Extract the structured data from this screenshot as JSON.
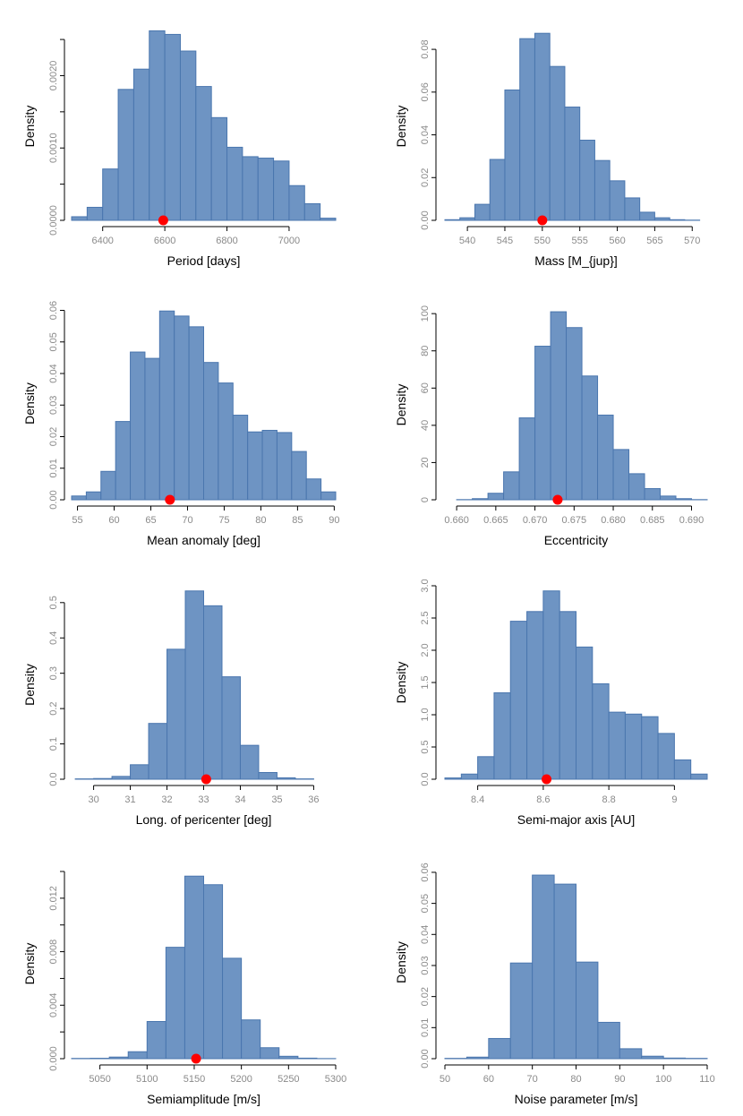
{
  "colors": {
    "bar_fill": "#6e94c3",
    "bar_edge": "#4a76ae",
    "marker": "#ff0000",
    "tick_text": "#8a8a8a"
  },
  "chart_data": [
    {
      "type": "bar",
      "xlabel": "Period [days]",
      "ylabel": "Density",
      "xlim": [
        6300,
        7150
      ],
      "ylim": [
        0,
        0.0026
      ],
      "xticks": [
        6400,
        6600,
        6800,
        7000
      ],
      "yticks": [
        0.0,
        0.001,
        0.002
      ],
      "ytick_labels": [
        "0.0000",
        "0.0010",
        "0.0020"
      ],
      "minor_yticks": [
        0.0005,
        0.0015,
        0.0025
      ],
      "bin_edges": [
        6300,
        6350,
        6400,
        6450,
        6500,
        6550,
        6600,
        6650,
        6700,
        6750,
        6800,
        6850,
        6900,
        6950,
        7000,
        7050,
        7100,
        7150
      ],
      "values": [
        5e-05,
        0.00018,
        0.00071,
        0.00181,
        0.00209,
        0.00262,
        0.00257,
        0.00234,
        0.00185,
        0.00142,
        0.00101,
        0.00088,
        0.00086,
        0.00082,
        0.00048,
        0.00023,
        3e-05
      ],
      "marker_x": 6595
    },
    {
      "type": "bar",
      "xlabel": "Mass [M_{jup}]",
      "ylabel": "Density",
      "xlim": [
        537,
        572
      ],
      "ylim": [
        0,
        0.088
      ],
      "xticks": [
        540,
        545,
        550,
        555,
        560,
        565,
        570
      ],
      "yticks": [
        0.0,
        0.02,
        0.04,
        0.06,
        0.08
      ],
      "ytick_labels": [
        "0.00",
        "0.02",
        "0.04",
        "0.06",
        "0.08"
      ],
      "bin_edges": [
        537,
        539,
        541,
        543,
        545,
        547,
        549,
        551,
        553,
        555,
        557,
        559,
        561,
        563,
        565,
        567,
        569,
        571,
        572
      ],
      "values": [
        0.0003,
        0.0012,
        0.0075,
        0.0285,
        0.061,
        0.085,
        0.0875,
        0.072,
        0.053,
        0.0375,
        0.028,
        0.0185,
        0.0105,
        0.0038,
        0.0012,
        0.0003,
        0.0001,
        0.0
      ],
      "marker_x": 550
    },
    {
      "type": "bar",
      "xlabel": "Mean anomaly [deg]",
      "ylabel": "Density",
      "xlim": [
        54.2,
        90.2
      ],
      "ylim": [
        0,
        0.061
      ],
      "xticks": [
        55,
        60,
        65,
        70,
        75,
        80,
        85,
        90
      ],
      "yticks": [
        0.0,
        0.01,
        0.02,
        0.03,
        0.04,
        0.05,
        0.06
      ],
      "ytick_labels": [
        "0.00",
        "0.01",
        "0.02",
        "0.03",
        "0.04",
        "0.05",
        "0.06"
      ],
      "bin_edges": [
        54.2,
        56.2,
        58.2,
        60.2,
        62.2,
        64.2,
        66.2,
        68.2,
        70.2,
        72.2,
        74.2,
        76.2,
        78.2,
        80.2,
        82.2,
        84.2,
        86.2,
        88.2,
        90.2
      ],
      "values": [
        0.0012,
        0.0025,
        0.009,
        0.0248,
        0.0468,
        0.0448,
        0.0598,
        0.0582,
        0.0548,
        0.0435,
        0.037,
        0.0268,
        0.0215,
        0.022,
        0.0213,
        0.0153,
        0.0066,
        0.0025
      ],
      "marker_x": 67.6
    },
    {
      "type": "bar",
      "xlabel": "Eccentricity",
      "ylabel": "Density",
      "xlim": [
        0.6585,
        0.692
      ],
      "ylim": [
        0,
        102
      ],
      "xticks": [
        0.66,
        0.665,
        0.67,
        0.675,
        0.68,
        0.685,
        0.69
      ],
      "yticks": [
        0,
        20,
        40,
        60,
        80,
        100
      ],
      "ytick_labels": [
        "0",
        "20",
        "40",
        "60",
        "80",
        "100"
      ],
      "tick_decimals": 3,
      "bin_edges": [
        0.66,
        0.662,
        0.664,
        0.666,
        0.668,
        0.67,
        0.672,
        0.674,
        0.676,
        0.678,
        0.68,
        0.682,
        0.684,
        0.686,
        0.688,
        0.69,
        0.692
      ],
      "values": [
        0.1,
        0.6,
        3.5,
        15,
        44,
        82.5,
        101,
        92.5,
        66.5,
        45.5,
        27,
        14,
        6,
        2,
        0.6,
        0.1
      ],
      "marker_x": 0.6729
    },
    {
      "type": "bar",
      "xlabel": "Long. of pericenter [deg]",
      "ylabel": "Density",
      "xlim": [
        29.4,
        36.6
      ],
      "ylim": [
        0,
        0.535
      ],
      "xticks": [
        30,
        31,
        32,
        33,
        34,
        35,
        36
      ],
      "yticks": [
        0.0,
        0.1,
        0.2,
        0.3,
        0.4,
        0.5
      ],
      "ytick_labels": [
        "0.0",
        "0.1",
        "0.2",
        "0.3",
        "0.4",
        "0.5"
      ],
      "bin_edges": [
        29.5,
        30.0,
        30.5,
        31.0,
        31.5,
        32.0,
        32.5,
        33.0,
        33.5,
        34.0,
        34.5,
        35.0,
        35.5,
        36.0,
        36.5
      ],
      "values": [
        0.001,
        0.002,
        0.008,
        0.041,
        0.158,
        0.368,
        0.533,
        0.491,
        0.29,
        0.096,
        0.019,
        0.004,
        0.001,
        0.0
      ],
      "marker_x": 33.07
    },
    {
      "type": "bar",
      "xlabel": "Semi-major axis [AU]",
      "ylabel": "Density",
      "xlim": [
        8.3,
        9.1
      ],
      "ylim": [
        0,
        3.0
      ],
      "xticks": [
        8.4,
        8.6,
        8.8,
        9.0
      ],
      "yticks": [
        0.0,
        0.5,
        1.0,
        1.5,
        2.0,
        2.5,
        3.0
      ],
      "ytick_labels": [
        "0.0",
        "0.5",
        "1.0",
        "1.5",
        "2.0",
        "2.5",
        "3.0"
      ],
      "bin_edges": [
        8.3,
        8.35,
        8.4,
        8.45,
        8.5,
        8.55,
        8.6,
        8.65,
        8.7,
        8.75,
        8.8,
        8.85,
        8.9,
        8.95,
        9.0,
        9.05,
        9.1
      ],
      "values": [
        0.02,
        0.08,
        0.35,
        1.34,
        2.45,
        2.6,
        2.92,
        2.6,
        2.05,
        1.48,
        1.04,
        1.01,
        0.97,
        0.71,
        0.3,
        0.08
      ],
      "marker_x": 8.61
    },
    {
      "type": "bar",
      "xlabel": "Semiamplitude [m/s]",
      "ylabel": "Density",
      "xlim": [
        5020,
        5300
      ],
      "ylim": [
        0,
        0.0142
      ],
      "xticks": [
        5050,
        5100,
        5150,
        5200,
        5250,
        5300
      ],
      "yticks": [
        0.0,
        0.004,
        0.008,
        0.012
      ],
      "ytick_labels": [
        "0.000",
        "0.004",
        "0.008",
        "0.012"
      ],
      "minor_yticks": [
        0.002,
        0.006,
        0.01,
        0.014
      ],
      "bin_edges": [
        5020,
        5040,
        5060,
        5080,
        5100,
        5120,
        5140,
        5160,
        5180,
        5200,
        5220,
        5240,
        5260,
        5280,
        5300
      ],
      "values": [
        2e-05,
        3e-05,
        0.00012,
        0.00052,
        0.00278,
        0.00833,
        0.01365,
        0.01301,
        0.00751,
        0.0029,
        0.00082,
        0.00018,
        4e-05,
        1e-05
      ],
      "marker_x": 5152
    },
    {
      "type": "bar",
      "xlabel": "Noise parameter [m/s]",
      "ylabel": "Density",
      "xlim": [
        50,
        110
      ],
      "ylim": [
        0,
        0.062
      ],
      "xticks": [
        50,
        60,
        70,
        80,
        90,
        100,
        110
      ],
      "yticks": [
        0.0,
        0.01,
        0.02,
        0.03,
        0.04,
        0.05,
        0.06
      ],
      "ytick_labels": [
        "0.00",
        "0.01",
        "0.02",
        "0.03",
        "0.04",
        "0.05",
        "0.06"
      ],
      "bin_edges": [
        50,
        55,
        60,
        65,
        70,
        75,
        80,
        85,
        90,
        95,
        100,
        105,
        110
      ],
      "values": [
        0.0001,
        0.0005,
        0.0065,
        0.0308,
        0.0591,
        0.0562,
        0.0311,
        0.0117,
        0.0032,
        0.0008,
        0.0002,
        0.0001
      ],
      "marker_x": null
    }
  ]
}
